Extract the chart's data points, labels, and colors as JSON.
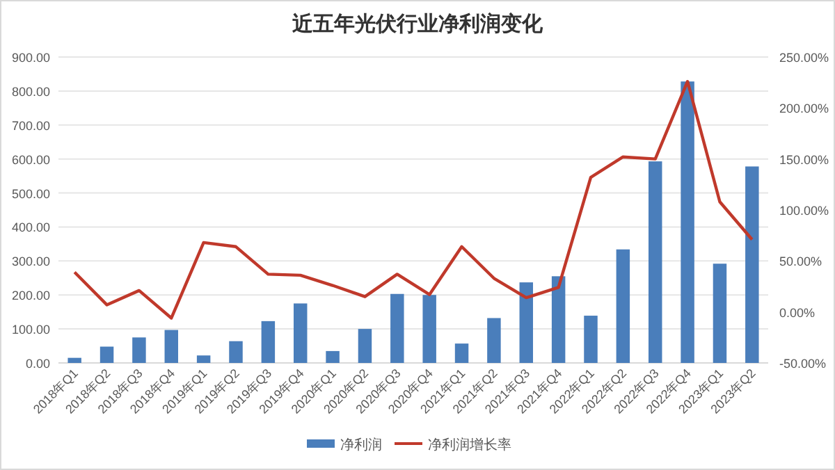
{
  "chart_data": {
    "type": "bar",
    "title": "近五年光伏行业净利润变化",
    "categories": [
      "2018年Q1",
      "2018年Q2",
      "2018年Q3",
      "2018年Q4",
      "2019年Q1",
      "2019年Q2",
      "2019年Q3",
      "2019年Q4",
      "2020年Q1",
      "2020年Q2",
      "2020年Q3",
      "2020年Q4",
      "2021年Q1",
      "2021年Q2",
      "2021年Q3",
      "2021年Q4",
      "2022年Q1",
      "2022年Q2",
      "2022年Q3",
      "2022年Q4",
      "2023年Q1",
      "2023年Q2"
    ],
    "series": [
      {
        "name": "净利润",
        "color": "#4a7ebb",
        "values": [
          15,
          48,
          75,
          97,
          22,
          64,
          123,
          175,
          35,
          100,
          203,
          200,
          57,
          132,
          237,
          255,
          139,
          334,
          593,
          828,
          292,
          578
        ]
      },
      {
        "name": "净利润增长率",
        "type": "line",
        "axis": "y2",
        "color": "#c0392b",
        "values": [
          39,
          7,
          21,
          -6,
          68,
          64,
          37,
          36,
          26,
          15,
          37,
          17,
          64,
          33,
          14,
          24,
          132,
          152,
          150,
          226,
          108,
          71
        ]
      }
    ],
    "ylim": [
      0,
      900
    ],
    "yticks": [
      {
        "value": 0,
        "label": "0.00"
      },
      {
        "value": 100,
        "label": "100.00"
      },
      {
        "value": 200,
        "label": "200.00"
      },
      {
        "value": 300,
        "label": "300.00"
      },
      {
        "value": 400,
        "label": "400.00"
      },
      {
        "value": 500,
        "label": "500.00"
      },
      {
        "value": 600,
        "label": "600.00"
      },
      {
        "value": 700,
        "label": "700.00"
      },
      {
        "value": 800,
        "label": "800.00"
      },
      {
        "value": 900,
        "label": "900.00"
      }
    ],
    "y2lim": [
      -50,
      250
    ],
    "y2ticks": [
      {
        "value": -50,
        "label": "-50.00%"
      },
      {
        "value": 0,
        "label": "0.00%"
      },
      {
        "value": 50,
        "label": "50.00%"
      },
      {
        "value": 100,
        "label": "100.00%"
      },
      {
        "value": 150,
        "label": "150.00%"
      },
      {
        "value": 200,
        "label": "200.00%"
      },
      {
        "value": 250,
        "label": "250.00%"
      }
    ],
    "grid": "y",
    "legend": "bottom"
  }
}
